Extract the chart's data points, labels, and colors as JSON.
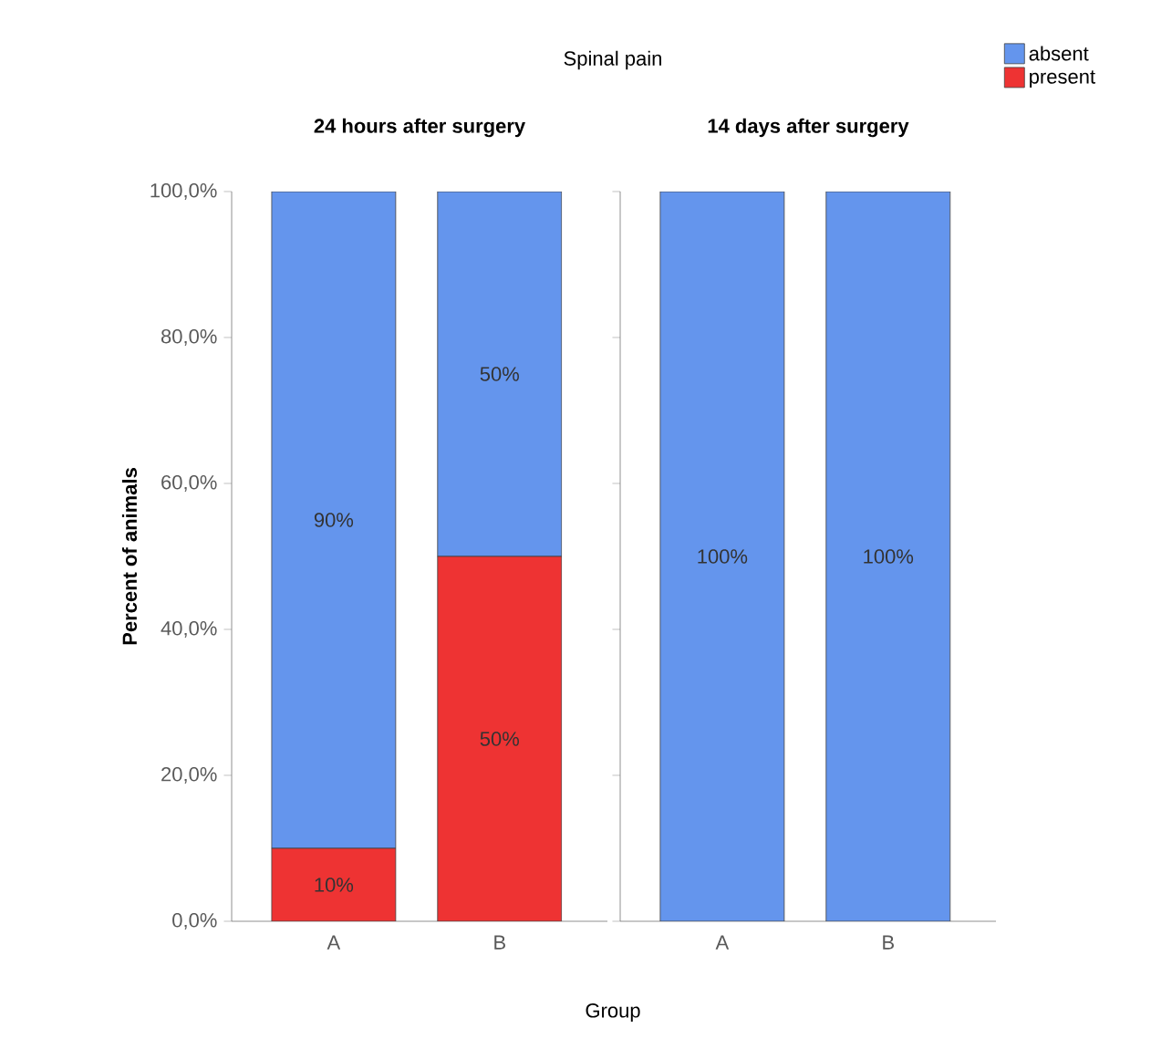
{
  "chart_data": [
    {
      "type": "bar",
      "stacked": true,
      "title": "Spinal pain",
      "subtitle": "24 hours after surgery",
      "xlabel": "Group",
      "ylabel": "Percent of animals",
      "categories": [
        "A",
        "B"
      ],
      "series": [
        {
          "name": "present",
          "color": "#ee3333",
          "values": [
            10,
            50
          ],
          "value_labels": [
            "10%",
            "50%"
          ]
        },
        {
          "name": "absent",
          "color": "#6495ed",
          "values": [
            90,
            50
          ],
          "value_labels": [
            "90%",
            "50%"
          ]
        }
      ],
      "legend": "top right",
      "ylim": [
        0,
        100
      ],
      "yticks": [
        {
          "value": 0,
          "label": "0,0%"
        },
        {
          "value": 20,
          "label": "20,0%"
        },
        {
          "value": 40,
          "label": "40,0%"
        },
        {
          "value": 60,
          "label": "60,0%"
        },
        {
          "value": 80,
          "label": "80,0%"
        },
        {
          "value": 100,
          "label": "100,0%"
        }
      ]
    },
    {
      "type": "bar",
      "stacked": true,
      "subtitle": "14 days after surgery",
      "categories": [
        "A",
        "B"
      ],
      "tick_labels": "x",
      "series": [
        {
          "color": "#ee3333",
          "values": [
            0,
            0
          ],
          "value_labels": [
            null,
            null
          ]
        },
        {
          "color": "#6495ed",
          "values": [
            100,
            100
          ],
          "value_labels": [
            "100%",
            "100%"
          ]
        }
      ],
      "ylim": [
        0,
        100
      ],
      "yticks": [
        0,
        20,
        40,
        60,
        80,
        100
      ]
    }
  ]
}
